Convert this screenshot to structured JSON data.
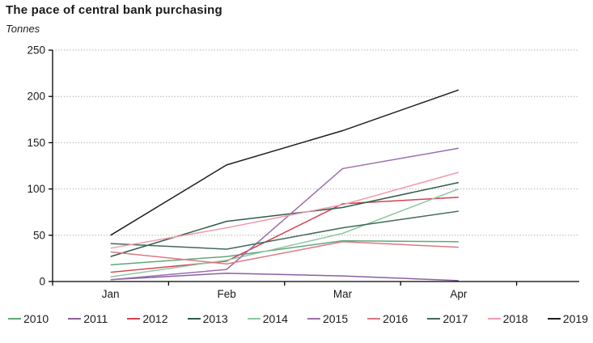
{
  "title": "The pace of central bank purchasing",
  "subtitle": "Tonnes",
  "chart_data": {
    "type": "line",
    "title": "The pace of central bank purchasing",
    "ylabel": "Tonnes",
    "xlabel": "",
    "categories": [
      "Jan",
      "Feb",
      "Mar",
      "Apr"
    ],
    "ylim": [
      0,
      250
    ],
    "yticks": [
      0,
      50,
      100,
      150,
      200,
      250
    ],
    "grid": "horizontal-dotted",
    "legend_position": "bottom",
    "series": [
      {
        "name": "2010",
        "color": "#5fa87c",
        "values": [
          18,
          27,
          44,
          43
        ]
      },
      {
        "name": "2011",
        "color": "#8a5fa0",
        "values": [
          2,
          9,
          6,
          1
        ]
      },
      {
        "name": "2012",
        "color": "#d6404e",
        "values": [
          10,
          22,
          84,
          91
        ]
      },
      {
        "name": "2013",
        "color": "#2f5c4c",
        "values": [
          27,
          65,
          80,
          107
        ]
      },
      {
        "name": "2014",
        "color": "#8cc7a1",
        "values": [
          5,
          23,
          52,
          100
        ]
      },
      {
        "name": "2015",
        "color": "#9a6fb0",
        "values": [
          2,
          13,
          122,
          144
        ]
      },
      {
        "name": "2016",
        "color": "#d97a85",
        "values": [
          32,
          19,
          43,
          37
        ]
      },
      {
        "name": "2017",
        "color": "#41685c",
        "values": [
          41,
          35,
          58,
          76
        ]
      },
      {
        "name": "2018",
        "color": "#f09cac",
        "values": [
          36,
          58,
          83,
          118
        ]
      },
      {
        "name": "2019",
        "color": "#1f1f1f",
        "values": [
          50,
          126,
          163,
          207
        ]
      }
    ],
    "axis_color": "#000000",
    "gridline_color": "#b3b3b3"
  }
}
